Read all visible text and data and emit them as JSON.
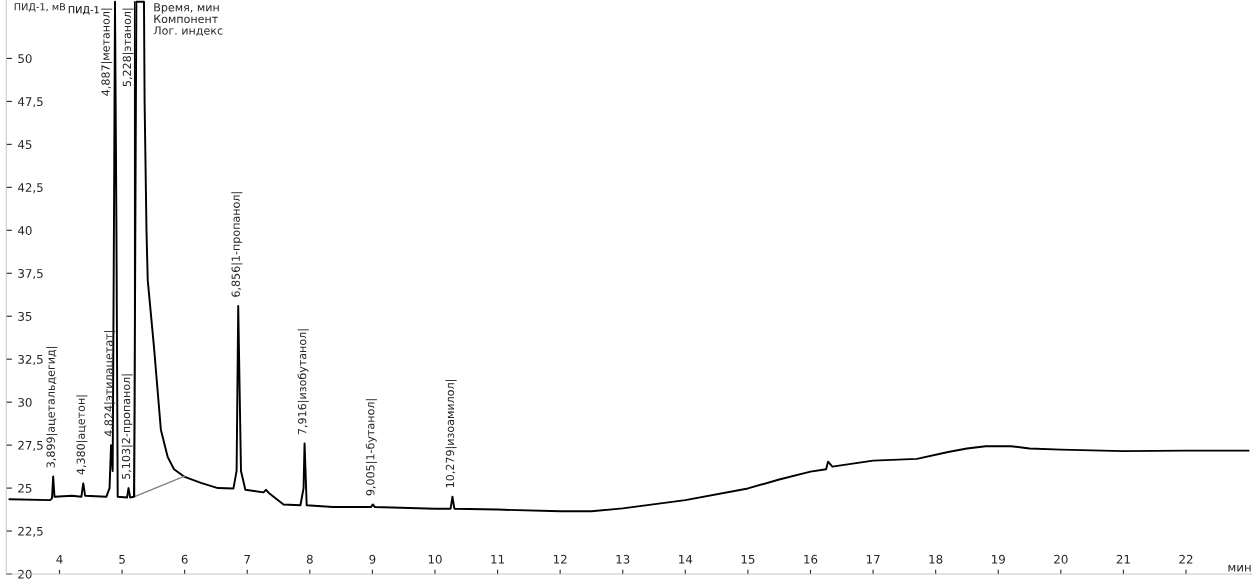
{
  "chart_data": {
    "type": "line",
    "ylabel": "ПИД-1, мВ",
    "xlabel": "мин",
    "xlim": [
      3.15,
      23.05
    ],
    "ylim": [
      20,
      53.4
    ],
    "xticks": [
      4,
      5,
      6,
      7,
      8,
      9,
      10,
      11,
      12,
      13,
      14,
      15,
      16,
      17,
      18,
      19,
      20,
      21,
      22
    ],
    "yticks": [
      20,
      {
        "value": 22.5,
        "label": "22,5"
      },
      25,
      {
        "value": 27.5,
        "label": "27,5"
      },
      30,
      {
        "value": 32.5,
        "label": "32,5"
      },
      35,
      {
        "value": 37.5,
        "label": "37,5"
      },
      40,
      {
        "value": 42.5,
        "label": "42,5"
      },
      45,
      {
        "value": 47.5,
        "label": "47,5"
      },
      50
    ],
    "grid": false,
    "legend": false,
    "marker": "none",
    "line_style": "solid",
    "series": [
      {
        "name": "ПИД-1",
        "color": "#000000",
        "x": [
          3.2,
          3.85,
          3.88,
          3.899,
          3.92,
          4.2,
          4.35,
          4.38,
          4.41,
          4.75,
          4.8,
          4.824,
          4.85,
          4.87,
          4.887,
          4.91,
          4.93,
          5.08,
          5.103,
          5.13,
          5.19,
          5.2,
          5.228,
          5.35,
          5.36,
          5.39,
          5.41,
          5.51,
          5.62,
          5.73,
          5.83,
          5.99,
          6.26,
          6.53,
          6.78,
          6.83,
          6.856,
          6.9,
          6.97,
          7.26,
          7.3,
          7.35,
          7.58,
          7.85,
          7.9,
          7.916,
          7.95,
          8.37,
          8.98,
          9.005,
          9.04,
          10.0,
          10.25,
          10.279,
          10.31,
          11.0,
          12.0,
          12.5,
          13.0,
          14.0,
          15.0,
          15.5,
          16.0,
          16.25,
          16.28,
          16.35,
          17.0,
          17.7,
          18.2,
          18.5,
          18.8,
          19.2,
          19.5,
          20.0,
          21.0,
          22.0,
          23.0
        ],
        "values": [
          24.35,
          24.3,
          24.4,
          25.67,
          24.5,
          24.55,
          24.5,
          25.27,
          24.55,
          24.5,
          25.0,
          27.5,
          26.0,
          40,
          53.3,
          40,
          24.5,
          24.45,
          25.0,
          24.45,
          24.5,
          30,
          53.3,
          53.3,
          47.5,
          40,
          37.1,
          33.2,
          28.4,
          26.8,
          26.1,
          25.67,
          25.3,
          25.0,
          24.98,
          26.0,
          35.6,
          26.0,
          24.9,
          24.75,
          24.9,
          24.7,
          24.05,
          24.0,
          25.0,
          27.6,
          24.0,
          23.9,
          23.9,
          24.05,
          23.9,
          23.8,
          23.8,
          24.5,
          23.8,
          23.75,
          23.65,
          23.65,
          23.82,
          24.3,
          24.98,
          25.5,
          25.96,
          26.1,
          26.54,
          26.25,
          26.6,
          26.7,
          27.1,
          27.3,
          27.44,
          27.44,
          27.3,
          27.24,
          27.15,
          27.18,
          27.18
        ]
      },
      {
        "color": "#808080",
        "x": [
          5.2,
          6.0
        ],
        "values": [
          24.5,
          25.7
        ]
      },
      {
        "color": "#000000",
        "x": [
          5.2,
          5.2
        ],
        "values": [
          24.5,
          53.3
        ]
      }
    ],
    "annotations": [
      {
        "text": "3,899|ацетальдегид|",
        "x": 3.899,
        "y": 25.67
      },
      {
        "text": "4,380|ацетон|",
        "x": 4.38,
        "y": 25.27
      },
      {
        "text": "4,824|этилацетат|",
        "x": 4.824,
        "y": 27.5
      },
      {
        "text": "4,887|метанол|",
        "x": 4.887,
        "y": 53.3
      },
      {
        "text": "5,103|2-пропанол|",
        "x": 5.103,
        "y": 25.0
      },
      {
        "text": "5,228|этанол|",
        "x": 5.228,
        "y": 53.3
      },
      {
        "text": "6,856|1-пропанол|",
        "x": 6.856,
        "y": 35.6
      },
      {
        "text": "7,916|изобутанол|",
        "x": 7.916,
        "y": 27.6
      },
      {
        "text": "9,005|1-бутанол|",
        "x": 9.005,
        "y": 24.05
      },
      {
        "text": "10,279|изоамилол|",
        "x": 10.279,
        "y": 24.5
      },
      "Время, мин\nКомпонент\nЛог. индекс"
    ]
  }
}
